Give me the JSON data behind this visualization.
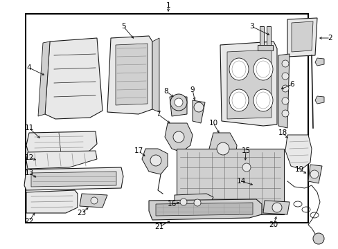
{
  "bg_color": "#ffffff",
  "border_color": "#000000",
  "text_color": "#000000",
  "lc": "#1a1a1a",
  "fc_light": "#e8e8e8",
  "fc_mid": "#d0d0d0",
  "fc_dark": "#b8b8b8",
  "font_size": 7.5,
  "border": [
    0.075,
    0.055,
    0.91,
    0.895
  ]
}
